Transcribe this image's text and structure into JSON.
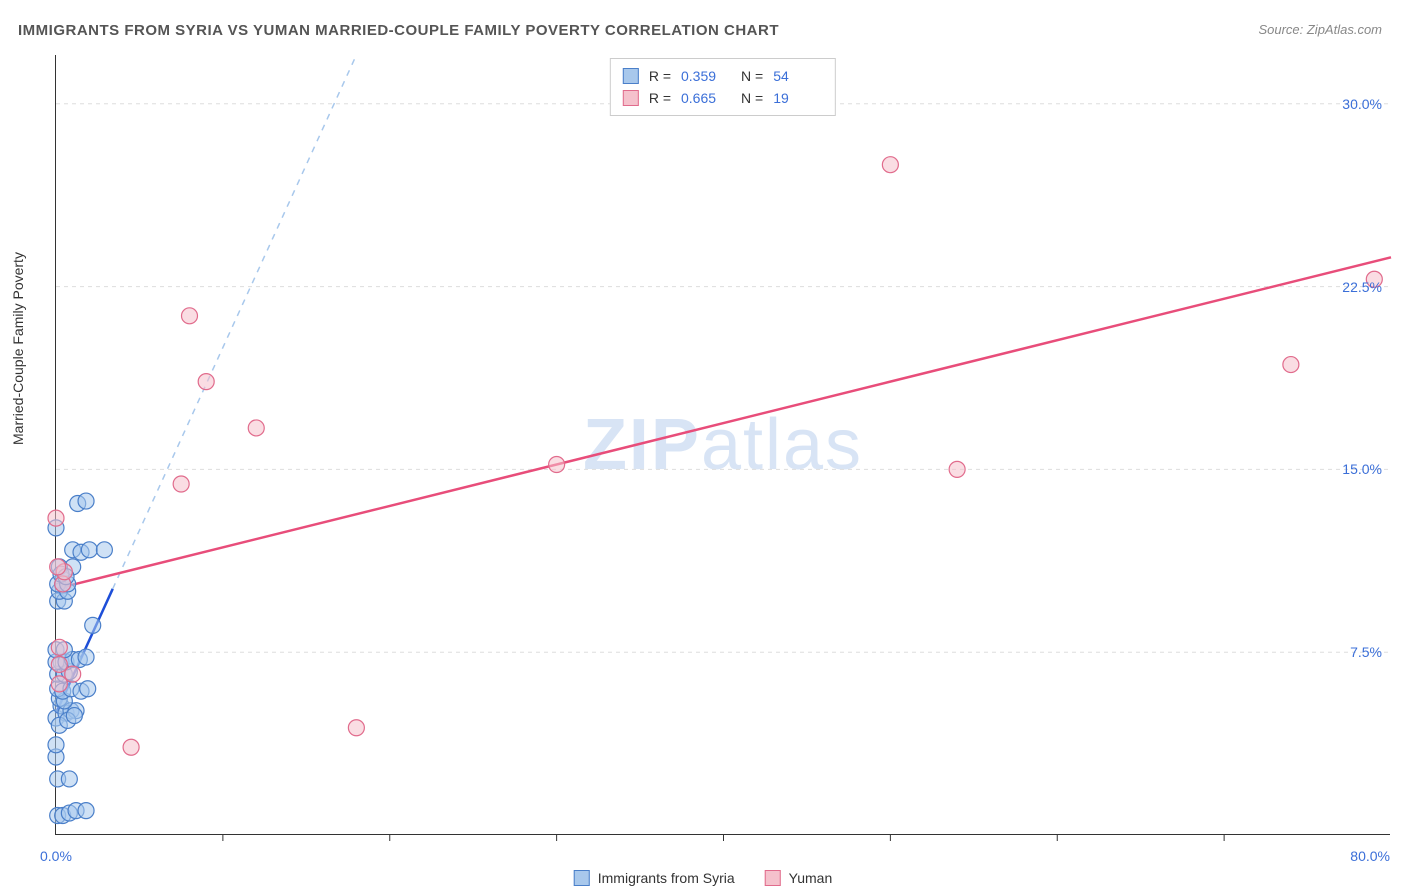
{
  "title": "IMMIGRANTS FROM SYRIA VS YUMAN MARRIED-COUPLE FAMILY POVERTY CORRELATION CHART",
  "source": "Source: ZipAtlas.com",
  "ylabel": "Married-Couple Family Poverty",
  "watermark_bold": "ZIP",
  "watermark_thin": "atlas",
  "chart": {
    "type": "scatter",
    "xlim": [
      0,
      80
    ],
    "ylim": [
      0,
      32
    ],
    "x_tick_step": 10,
    "y_ticks": [
      7.5,
      15.0,
      22.5,
      30.0
    ],
    "y_tick_labels": [
      "7.5%",
      "15.0%",
      "22.5%",
      "30.0%"
    ],
    "x_origin_label": "0.0%",
    "x_max_label": "80.0%",
    "grid_color": "#dddddd",
    "axis_color": "#333333",
    "axis_label_color": "#3b6fd8",
    "background_color": "#ffffff",
    "marker_radius": 8,
    "marker_stroke_width": 1.2,
    "trend_line_width": 2.5,
    "trend_line_width_dashed": 1.5
  },
  "series": [
    {
      "key": "syria",
      "label": "Immigrants from Syria",
      "fill": "#a8c8ec",
      "stroke": "#4a7fc9",
      "fill_opacity": 0.55,
      "R": "0.359",
      "N": "54",
      "trend": {
        "x1": 0,
        "y1": 5.0,
        "x2": 3.4,
        "y2": 10.1,
        "solid_color": "#1d4ed8",
        "dash_from_x": 3.4,
        "dash_from_y": 10.1,
        "dash_to_x": 20,
        "dash_to_y": 35,
        "dash_color": "#a8c8ec"
      },
      "points": [
        [
          0.1,
          0.8
        ],
        [
          0.4,
          0.8
        ],
        [
          0.8,
          0.9
        ],
        [
          1.2,
          1.0
        ],
        [
          1.8,
          1.0
        ],
        [
          0.1,
          2.3
        ],
        [
          0.8,
          2.3
        ],
        [
          0.0,
          3.2
        ],
        [
          0.0,
          3.7
        ],
        [
          0.0,
          4.8
        ],
        [
          0.3,
          5.3
        ],
        [
          0.6,
          5.0
        ],
        [
          0.9,
          5.1
        ],
        [
          1.2,
          5.1
        ],
        [
          0.2,
          5.6
        ],
        [
          0.5,
          5.5
        ],
        [
          0.1,
          6.0
        ],
        [
          0.4,
          5.9
        ],
        [
          0.9,
          6.0
        ],
        [
          1.5,
          5.9
        ],
        [
          1.9,
          6.0
        ],
        [
          0.1,
          6.6
        ],
        [
          0.5,
          6.6
        ],
        [
          0.8,
          6.7
        ],
        [
          0.3,
          7.1
        ],
        [
          0.0,
          7.1
        ],
        [
          0.6,
          7.1
        ],
        [
          1.0,
          7.2
        ],
        [
          1.4,
          7.2
        ],
        [
          1.8,
          7.3
        ],
        [
          0.0,
          7.6
        ],
        [
          0.5,
          7.6
        ],
        [
          2.2,
          8.6
        ],
        [
          0.1,
          9.6
        ],
        [
          0.5,
          9.6
        ],
        [
          0.2,
          10.0
        ],
        [
          0.7,
          10.0
        ],
        [
          0.1,
          10.3
        ],
        [
          0.4,
          10.3
        ],
        [
          0.7,
          10.3
        ],
        [
          1.0,
          11.0
        ],
        [
          0.2,
          11.0
        ],
        [
          1.0,
          11.7
        ],
        [
          1.5,
          11.6
        ],
        [
          2.0,
          11.7
        ],
        [
          2.9,
          11.7
        ],
        [
          0.0,
          12.6
        ],
        [
          1.3,
          13.6
        ],
        [
          1.8,
          13.7
        ],
        [
          0.3,
          10.7
        ],
        [
          0.6,
          10.6
        ],
        [
          0.2,
          4.5
        ],
        [
          0.7,
          4.7
        ],
        [
          1.1,
          4.9
        ]
      ]
    },
    {
      "key": "yuman",
      "label": "Yuman",
      "fill": "#f5c1cc",
      "stroke": "#e16b8c",
      "fill_opacity": 0.55,
      "R": "0.665",
      "N": "19",
      "trend": {
        "x1": 0,
        "y1": 10.1,
        "x2": 80,
        "y2": 23.7,
        "solid_color": "#e84d7a"
      },
      "points": [
        [
          0.2,
          7.0
        ],
        [
          0.2,
          7.7
        ],
        [
          0.2,
          6.2
        ],
        [
          4.5,
          3.6
        ],
        [
          0.4,
          10.3
        ],
        [
          0.5,
          10.8
        ],
        [
          0.1,
          11.0
        ],
        [
          0.0,
          13.0
        ],
        [
          7.5,
          14.4
        ],
        [
          12.0,
          16.7
        ],
        [
          9.0,
          18.6
        ],
        [
          8.0,
          21.3
        ],
        [
          18.0,
          4.4
        ],
        [
          30.0,
          15.2
        ],
        [
          50.0,
          27.5
        ],
        [
          54.0,
          15.0
        ],
        [
          74.0,
          19.3
        ],
        [
          79.0,
          22.8
        ],
        [
          1.0,
          6.6
        ]
      ]
    }
  ],
  "legend": {
    "R_label": "R =",
    "N_label": "N ="
  }
}
